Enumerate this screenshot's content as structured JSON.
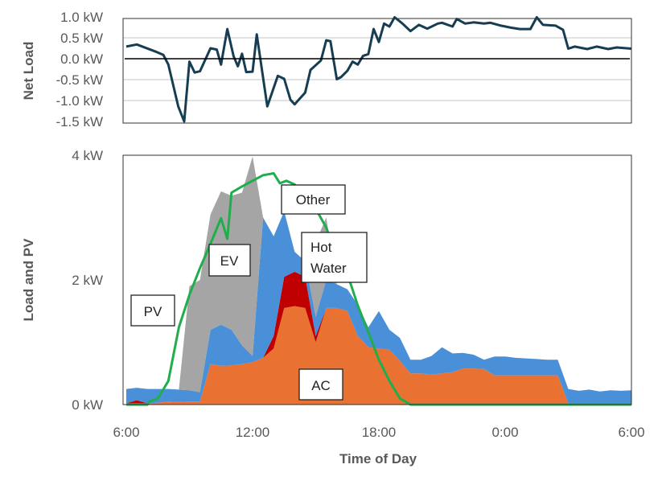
{
  "chart_data": [
    {
      "type": "line",
      "ylabel": "Net Load",
      "ylim": [
        -1.5,
        1.0
      ],
      "xlim": [
        6,
        30
      ],
      "yticks": [
        {
          "value": 1.0,
          "label": "1.0 kW"
        },
        {
          "value": 0.5,
          "label": "0.5 kW"
        },
        {
          "value": 0.0,
          "label": "0.0 kW"
        },
        {
          "value": -0.5,
          "label": "-0.5 kW"
        },
        {
          "value": -1.0,
          "label": "-1.0 kW"
        },
        {
          "value": -1.5,
          "label": "-1.5 kW"
        }
      ],
      "grid": true,
      "series": [
        {
          "name": "Net Load",
          "color": "#163d52",
          "x": [
            6.0,
            6.5,
            7.45,
            7.76,
            8.0,
            8.47,
            8.75,
            9.0,
            9.25,
            9.5,
            10.0,
            10.3,
            10.5,
            10.8,
            11.1,
            11.3,
            11.5,
            11.7,
            12.0,
            12.2,
            12.7,
            13.2,
            13.5,
            13.8,
            14.0,
            14.5,
            14.75,
            15.25,
            15.5,
            15.7,
            16.0,
            16.2,
            16.5,
            16.75,
            17.0,
            17.25,
            17.5,
            17.75,
            18.0,
            18.25,
            18.5,
            18.75,
            19.1,
            19.5,
            19.9,
            20.3,
            20.8,
            21.0,
            21.5,
            21.7,
            22.1,
            22.5,
            23.0,
            23.3,
            23.8,
            24.3,
            24.7,
            25.2,
            25.5,
            25.8,
            26.4,
            26.75,
            27.0,
            27.3,
            27.9,
            28.35,
            28.9,
            29.3,
            30.0
          ],
          "y": [
            0.29,
            0.34,
            0.16,
            0.09,
            -0.14,
            -1.14,
            -1.5,
            -0.07,
            -0.33,
            -0.3,
            0.25,
            0.22,
            -0.14,
            0.71,
            0.06,
            -0.18,
            0.12,
            -0.32,
            -0.31,
            0.58,
            -1.14,
            -0.41,
            -0.48,
            -0.98,
            -1.09,
            -0.81,
            -0.27,
            -0.04,
            0.44,
            0.42,
            -0.49,
            -0.44,
            -0.29,
            -0.07,
            -0.14,
            0.07,
            0.11,
            0.71,
            0.4,
            0.84,
            0.77,
            0.99,
            0.85,
            0.66,
            0.81,
            0.72,
            0.84,
            0.86,
            0.77,
            0.95,
            0.84,
            0.87,
            0.84,
            0.86,
            0.79,
            0.74,
            0.71,
            0.71,
            0.99,
            0.81,
            0.79,
            0.69,
            0.24,
            0.29,
            0.23,
            0.29,
            0.23,
            0.27,
            0.24
          ]
        }
      ]
    },
    {
      "type": "area",
      "stacked": true,
      "xlabel": "Time of Day",
      "ylabel": "Load and PV",
      "ylim": [
        0,
        4
      ],
      "xlim": [
        6,
        30
      ],
      "xticks": [
        {
          "value": 6,
          "label": "6:00"
        },
        {
          "value": 12,
          "label": "12:00"
        },
        {
          "value": 18,
          "label": "18:00"
        },
        {
          "value": 24,
          "label": "0:00"
        },
        {
          "value": 30,
          "label": "6:00"
        }
      ],
      "yticks": [
        {
          "value": 4,
          "label": "4 kW"
        },
        {
          "value": 2,
          "label": "2 kW"
        },
        {
          "value": 0,
          "label": "0 kW"
        }
      ],
      "x": [
        6,
        6.5,
        7,
        7.5,
        8,
        8.5,
        9,
        9.5,
        10,
        10.5,
        11,
        11.5,
        12,
        12.5,
        13,
        13.5,
        14,
        14.5,
        15,
        15.5,
        16,
        16.5,
        17,
        17.5,
        18,
        18.5,
        19,
        19.5,
        20,
        20.5,
        21,
        21.5,
        22,
        22.5,
        23,
        23.5,
        24,
        24.5,
        25,
        25.5,
        26,
        26.5,
        27,
        27.5,
        28,
        28.5,
        29,
        29.5,
        30
      ],
      "series": [
        {
          "name": "AC",
          "color": "#e97132",
          "values": [
            0.02,
            0.02,
            0.02,
            0.03,
            0.05,
            0.04,
            0.05,
            0.05,
            0.65,
            0.62,
            0.63,
            0.65,
            0.68,
            0.75,
            0.9,
            1.55,
            1.58,
            1.55,
            1.0,
            1.55,
            1.55,
            1.5,
            1.1,
            0.92,
            0.9,
            0.88,
            0.7,
            0.5,
            0.5,
            0.48,
            0.5,
            0.52,
            0.58,
            0.58,
            0.57,
            0.47,
            0.47,
            0.47,
            0.47,
            0.47,
            0.47,
            0.47,
            0.02,
            0,
            0,
            0,
            0,
            0,
            0
          ]
        },
        {
          "name": "Hot Water",
          "color": "#c00000",
          "values": [
            0,
            0.05,
            0,
            0,
            0,
            0,
            0,
            0,
            0,
            0,
            0,
            0,
            0,
            0,
            0.2,
            0.5,
            0.55,
            0.5,
            0.1,
            0,
            0,
            0,
            0,
            0,
            0,
            0,
            0,
            0,
            0,
            0,
            0,
            0,
            0,
            0,
            0,
            0,
            0,
            0,
            0,
            0,
            0,
            0,
            0,
            0,
            0,
            0,
            0,
            0,
            0
          ]
        },
        {
          "name": "Other",
          "color": "#4a90d9",
          "values": [
            0.23,
            0.2,
            0.23,
            0.22,
            0.2,
            0.2,
            0.18,
            0.15,
            0.55,
            0.66,
            0.57,
            0.3,
            0.1,
            2.25,
            1.6,
            1.05,
            0.32,
            0.25,
            0.31,
            0.45,
            0.38,
            0.35,
            0.5,
            0.32,
            0.6,
            0.32,
            0.37,
            0.22,
            0.22,
            0.3,
            0.42,
            0.3,
            0.25,
            0.22,
            0.15,
            0.3,
            0.3,
            0.28,
            0.27,
            0.26,
            0.25,
            0.25,
            0.23,
            0.22,
            0.24,
            0.21,
            0.23,
            0.22,
            0.23
          ]
        },
        {
          "name": "EV",
          "color": "#a5a5a5",
          "values": [
            0,
            0,
            0,
            0,
            0,
            0,
            1.67,
            1.8,
            1.85,
            2.14,
            2.15,
            2.45,
            3.2,
            0,
            0,
            0,
            0,
            0,
            1.2,
            1.0,
            0,
            0,
            0,
            0,
            0,
            0,
            0,
            0,
            0,
            0,
            0,
            0,
            0,
            0,
            0,
            0,
            0,
            0,
            0,
            0,
            0,
            0,
            0,
            0,
            0,
            0,
            0,
            0,
            0
          ]
        }
      ],
      "line": {
        "name": "PV",
        "color": "#1fae4b",
        "x": [
          6,
          7,
          7.1,
          7.5,
          8,
          8.5,
          9,
          9.5,
          10,
          10.5,
          10.8,
          11,
          11.5,
          12,
          12.5,
          13,
          13.3,
          13.6,
          14,
          14.5,
          15,
          15.5,
          16,
          16.5,
          17,
          17.5,
          18,
          18.5,
          19,
          19.5,
          30
        ],
        "y": [
          0,
          0,
          0.05,
          0.1,
          0.38,
          1.24,
          1.76,
          2.19,
          2.58,
          2.99,
          2.66,
          3.4,
          3.5,
          3.59,
          3.68,
          3.71,
          3.55,
          3.59,
          3.53,
          3.35,
          3.14,
          2.84,
          2.36,
          2.1,
          1.59,
          1.16,
          0.72,
          0.38,
          0.1,
          0,
          0
        ]
      },
      "annotations": [
        {
          "text": "PV"
        },
        {
          "text": "EV"
        },
        {
          "text": "Other"
        },
        {
          "text": "Hot Water",
          "lines": [
            "Hot",
            "Water"
          ]
        },
        {
          "text": "AC"
        }
      ]
    }
  ]
}
